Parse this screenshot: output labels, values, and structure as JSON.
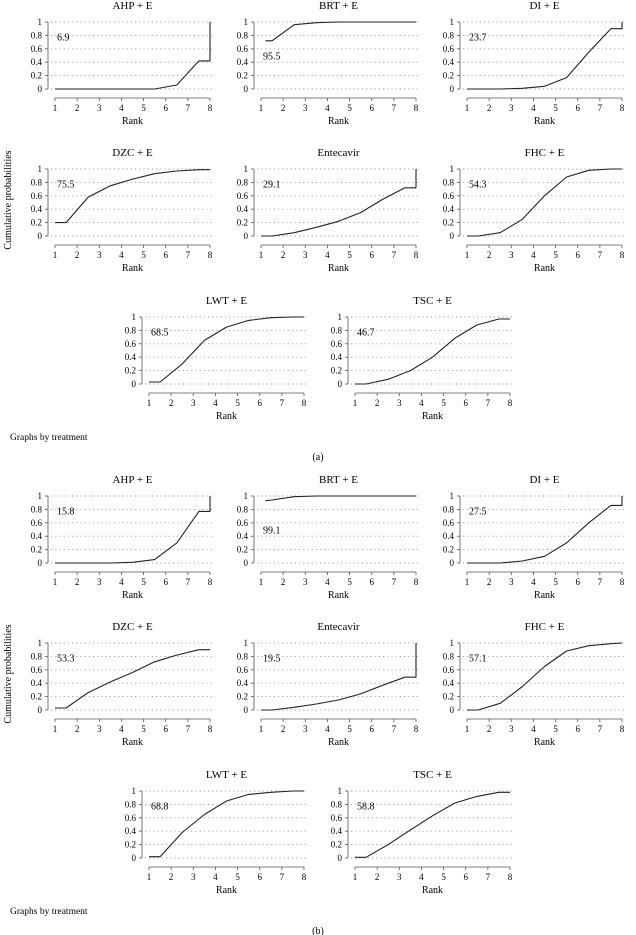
{
  "figure": {
    "ylabel": "Cumulative probabilities",
    "footnote": "Graphs by treatment",
    "yticks": [
      0,
      0.2,
      0.4,
      0.6,
      0.8,
      1
    ],
    "xticks": [
      1,
      2,
      3,
      4,
      5,
      6,
      7,
      8
    ],
    "xlabel": "Rank"
  },
  "chart_data": [
    {
      "type": "line",
      "caption": "(a)",
      "ylabel": "Cumulative probabilities",
      "footnote": "Graphs by treatment",
      "xlim": [
        1,
        8
      ],
      "ylim": [
        0,
        1
      ],
      "grid": "horizontal dotted",
      "panels": [
        {
          "title": "AHP + E",
          "sucra": "6.9",
          "xlabel": "Rank",
          "x": [
            1.0,
            4.5,
            5.5,
            6.5,
            7.5,
            8.0,
            8.0
          ],
          "y": [
            0,
            0,
            0,
            0.06,
            0.42,
            0.42,
            1.0
          ]
        },
        {
          "title": "BRT + E",
          "sucra": "95.5",
          "xlabel": "Rank",
          "x": [
            1.2,
            1.5,
            2.5,
            3.5,
            4.5,
            5.5,
            6.5,
            7.5,
            8.0
          ],
          "y": [
            0.72,
            0.72,
            0.96,
            0.99,
            1.0,
            1.0,
            1.0,
            1.0,
            1.0
          ]
        },
        {
          "title": "DI + E",
          "sucra": "23.7",
          "xlabel": "Rank",
          "x": [
            1.0,
            2.5,
            3.5,
            4.5,
            5.5,
            6.5,
            7.5,
            8.0,
            8.0
          ],
          "y": [
            0,
            0,
            0.01,
            0.04,
            0.17,
            0.55,
            0.9,
            0.9,
            1.0
          ]
        },
        {
          "title": "DZC + E",
          "sucra": "75.5",
          "xlabel": "Rank",
          "x": [
            1.0,
            1.5,
            2.5,
            3.5,
            4.5,
            5.5,
            6.5,
            7.5,
            8.0
          ],
          "y": [
            0.2,
            0.2,
            0.58,
            0.75,
            0.85,
            0.93,
            0.97,
            0.99,
            0.99
          ]
        },
        {
          "title": "Entecavir",
          "sucra": "29.1",
          "xlabel": "Rank",
          "x": [
            1.0,
            1.5,
            2.5,
            3.5,
            4.5,
            5.5,
            6.5,
            7.5,
            8.0,
            8.0
          ],
          "y": [
            0,
            0,
            0.05,
            0.13,
            0.22,
            0.35,
            0.55,
            0.72,
            0.72,
            1.0
          ]
        },
        {
          "title": "FHC + E",
          "sucra": "54.3",
          "xlabel": "Rank",
          "x": [
            1.0,
            1.5,
            2.5,
            3.5,
            4.5,
            5.5,
            6.5,
            7.5,
            8.0
          ],
          "y": [
            0,
            0,
            0.05,
            0.25,
            0.6,
            0.88,
            0.98,
            1.0,
            1.0
          ]
        },
        {
          "title": "LWT + E",
          "sucra": "68.5",
          "xlabel": "Rank",
          "x": [
            1.0,
            1.5,
            2.5,
            3.5,
            4.5,
            5.5,
            6.5,
            7.5,
            8.0
          ],
          "y": [
            0.03,
            0.03,
            0.3,
            0.65,
            0.85,
            0.95,
            0.99,
            1.0,
            1.0
          ]
        },
        {
          "title": "TSC + E",
          "sucra": "46.7",
          "xlabel": "Rank",
          "x": [
            1.0,
            1.5,
            2.5,
            3.5,
            4.5,
            5.5,
            6.5,
            7.5,
            8.0
          ],
          "y": [
            0,
            0,
            0.07,
            0.2,
            0.4,
            0.68,
            0.88,
            0.97,
            0.97
          ]
        }
      ]
    },
    {
      "type": "line",
      "caption": "(b)",
      "ylabel": "Cumulative probabilities",
      "footnote": "Graphs by treatment",
      "xlim": [
        1,
        8
      ],
      "ylim": [
        0,
        1
      ],
      "grid": "horizontal dotted",
      "panels": [
        {
          "title": "AHP + E",
          "sucra": "15.8",
          "xlabel": "Rank",
          "x": [
            1.0,
            3.5,
            4.5,
            5.5,
            6.5,
            7.5,
            8.0,
            8.0
          ],
          "y": [
            0,
            0,
            0.01,
            0.05,
            0.3,
            0.77,
            0.77,
            1.0
          ]
        },
        {
          "title": "BRT + E",
          "sucra": "99.1",
          "xlabel": "Rank",
          "x": [
            1.2,
            1.5,
            2.5,
            3.5,
            4.5,
            5.5,
            6.5,
            7.5,
            8.0
          ],
          "y": [
            0.93,
            0.94,
            0.99,
            1.0,
            1.0,
            1.0,
            1.0,
            1.0,
            1.0
          ]
        },
        {
          "title": "DI + E",
          "sucra": "27.5",
          "xlabel": "Rank",
          "x": [
            1.0,
            2.5,
            3.5,
            4.5,
            5.5,
            6.5,
            7.5,
            8.0,
            8.0
          ],
          "y": [
            0,
            0,
            0.03,
            0.1,
            0.3,
            0.6,
            0.86,
            0.86,
            1.0
          ]
        },
        {
          "title": "DZC + E",
          "sucra": "53.3",
          "xlabel": "Rank",
          "x": [
            1.0,
            1.5,
            2.5,
            3.5,
            4.5,
            5.5,
            6.5,
            7.5,
            8.0
          ],
          "y": [
            0.03,
            0.03,
            0.26,
            0.42,
            0.56,
            0.72,
            0.82,
            0.9,
            0.9
          ]
        },
        {
          "title": "Entecavir",
          "sucra": "19.5",
          "xlabel": "Rank",
          "x": [
            1.0,
            1.5,
            2.5,
            3.5,
            4.5,
            5.5,
            6.5,
            7.5,
            8.0,
            8.0
          ],
          "y": [
            0,
            0,
            0.04,
            0.09,
            0.15,
            0.24,
            0.37,
            0.49,
            0.49,
            1.0
          ]
        },
        {
          "title": "FHC + E",
          "sucra": "57.1",
          "xlabel": "Rank",
          "x": [
            1.0,
            1.5,
            2.5,
            3.5,
            4.5,
            5.5,
            6.5,
            7.5,
            8.0
          ],
          "y": [
            0,
            0,
            0.1,
            0.35,
            0.65,
            0.88,
            0.96,
            0.99,
            1.0
          ]
        },
        {
          "title": "LWT + E",
          "sucra": "68.8",
          "xlabel": "Rank",
          "x": [
            1.0,
            1.5,
            2.5,
            3.5,
            4.5,
            5.5,
            6.5,
            7.5,
            8.0
          ],
          "y": [
            0.02,
            0.02,
            0.38,
            0.65,
            0.85,
            0.95,
            0.98,
            1.0,
            1.0
          ]
        },
        {
          "title": "TSC + E",
          "sucra": "58.8",
          "xlabel": "Rank",
          "x": [
            1.0,
            1.5,
            2.5,
            3.5,
            4.5,
            5.5,
            6.5,
            7.5,
            8.0
          ],
          "y": [
            0.01,
            0.01,
            0.2,
            0.42,
            0.63,
            0.82,
            0.92,
            0.98,
            0.98
          ]
        }
      ]
    }
  ]
}
